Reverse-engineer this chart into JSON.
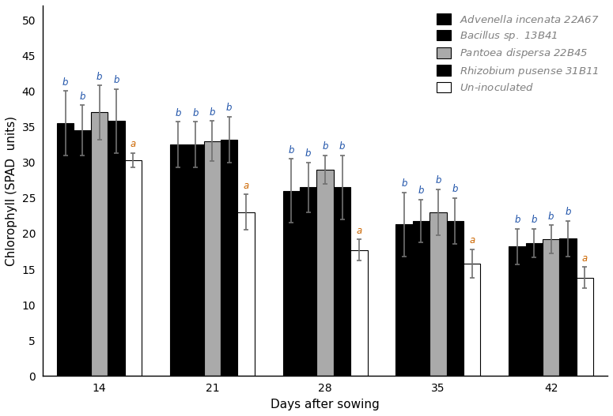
{
  "days": [
    14,
    21,
    28,
    35,
    42
  ],
  "species": [
    "Advenella incenata 22A67",
    "Bacillus sp. 13B41",
    "Pantoea dispersa 22B45",
    "Rhizobium pusense 31B11",
    "Un-inoculated"
  ],
  "values": [
    [
      35.5,
      32.5,
      26.0,
      21.3,
      18.2
    ],
    [
      34.5,
      32.5,
      26.5,
      21.8,
      18.7
    ],
    [
      37.0,
      33.0,
      29.0,
      23.0,
      19.2
    ],
    [
      35.8,
      33.2,
      26.5,
      21.8,
      19.3
    ],
    [
      30.3,
      23.0,
      17.7,
      15.8,
      13.8
    ]
  ],
  "errors": [
    [
      4.5,
      3.2,
      4.5,
      4.5,
      2.5
    ],
    [
      3.5,
      3.2,
      3.5,
      3.0,
      2.0
    ],
    [
      3.8,
      2.8,
      2.0,
      3.2,
      2.0
    ],
    [
      4.5,
      3.2,
      4.5,
      3.2,
      2.5
    ],
    [
      1.0,
      2.5,
      1.5,
      2.0,
      1.5
    ]
  ],
  "bar_colors": [
    "#000000",
    "#000000",
    "#aaaaaa",
    "#000000",
    "#ffffff"
  ],
  "bar_edgecolors": [
    "#000000",
    "#000000",
    "#000000",
    "#000000",
    "#000000"
  ],
  "hatches": [
    null,
    "..",
    null,
    "\\\\",
    null
  ],
  "ylabel": "Chlorophyll (SPAD  units)",
  "xlabel": "Days after sowing",
  "ylim": [
    0,
    52
  ],
  "yticks": [
    0,
    5,
    10,
    15,
    20,
    25,
    30,
    35,
    40,
    45,
    50
  ],
  "legend_labels": [
    "Advenella incenata 22A67",
    "Bacillus sp. 13B41",
    "Pantoea dispersa 22B45",
    "Rhizobium pusense 31B11",
    "Un-inoculated"
  ],
  "sig_labels": [
    [
      "b",
      "b",
      "b",
      "b",
      "b"
    ],
    [
      "b",
      "b",
      "b",
      "b",
      "b"
    ],
    [
      "b",
      "b",
      "b",
      "b",
      "b"
    ],
    [
      "b",
      "b",
      "b",
      "b",
      "b"
    ],
    [
      "a",
      "a",
      "a",
      "a",
      "a"
    ]
  ],
  "sig_color_b": "#2255aa",
  "sig_color_a": "#cc6600",
  "error_color": "#707070",
  "axis_fontsize": 11,
  "tick_fontsize": 10,
  "legend_fontsize": 9.5,
  "bar_width": 0.15,
  "legend_hatch_colors": [
    "#000000",
    "#000000",
    "#aaaaaa",
    "#000000",
    "#ffffff"
  ],
  "legend_hatch_edge": [
    "#000000",
    "#ffffff",
    "#000000",
    "#ffffff",
    "#000000"
  ]
}
